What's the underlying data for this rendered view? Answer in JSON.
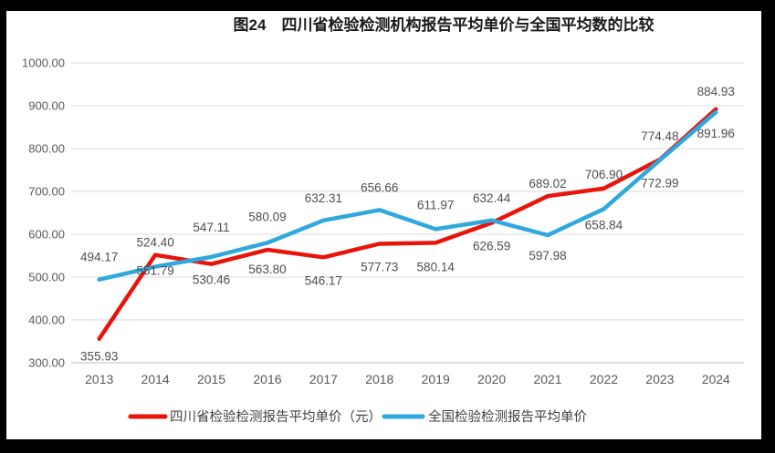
{
  "title": "图24　四川省检验检测机构报告平均单价与全国平均数的比较",
  "chart_data": {
    "type": "line",
    "categories": [
      "2013",
      "2014",
      "2015",
      "2016",
      "2017",
      "2018",
      "2019",
      "2020",
      "2021",
      "2022",
      "2023",
      "2024"
    ],
    "series": [
      {
        "name": "四川省检验检测报告平均单价（元）",
        "color": "#e8140c",
        "values": [
          355.93,
          551.79,
          530.46,
          563.8,
          546.17,
          577.73,
          580.14,
          626.59,
          689.02,
          706.9,
          774.48,
          891.96
        ],
        "label_dy": [
          24,
          22,
          22,
          26,
          30,
          30,
          31,
          30,
          -9,
          -11,
          -21,
          31
        ]
      },
      {
        "name": "全国检验检测报告平均单价",
        "color": "#2fa9dd",
        "values": [
          494.17,
          524.4,
          547.11,
          580.09,
          632.31,
          656.66,
          611.97,
          632.44,
          597.98,
          658.84,
          772.99,
          884.93
        ],
        "label_dy": [
          -20,
          -22,
          -28,
          -24,
          -20,
          -20,
          -22,
          -20,
          27,
          22,
          30,
          -18
        ]
      }
    ],
    "ylim": [
      300,
      1000
    ],
    "ytick_step": 100,
    "ytick_decimals": 2,
    "grid": true,
    "legend_position": "bottom",
    "colors": {
      "gridline": "#d9d9d9",
      "axis_line": "#bfbfbf",
      "tick_text": "#595959",
      "data_label_text": "#4d4d4d",
      "panel_bg": "#ffffff",
      "frame_bg": "#000000"
    }
  }
}
